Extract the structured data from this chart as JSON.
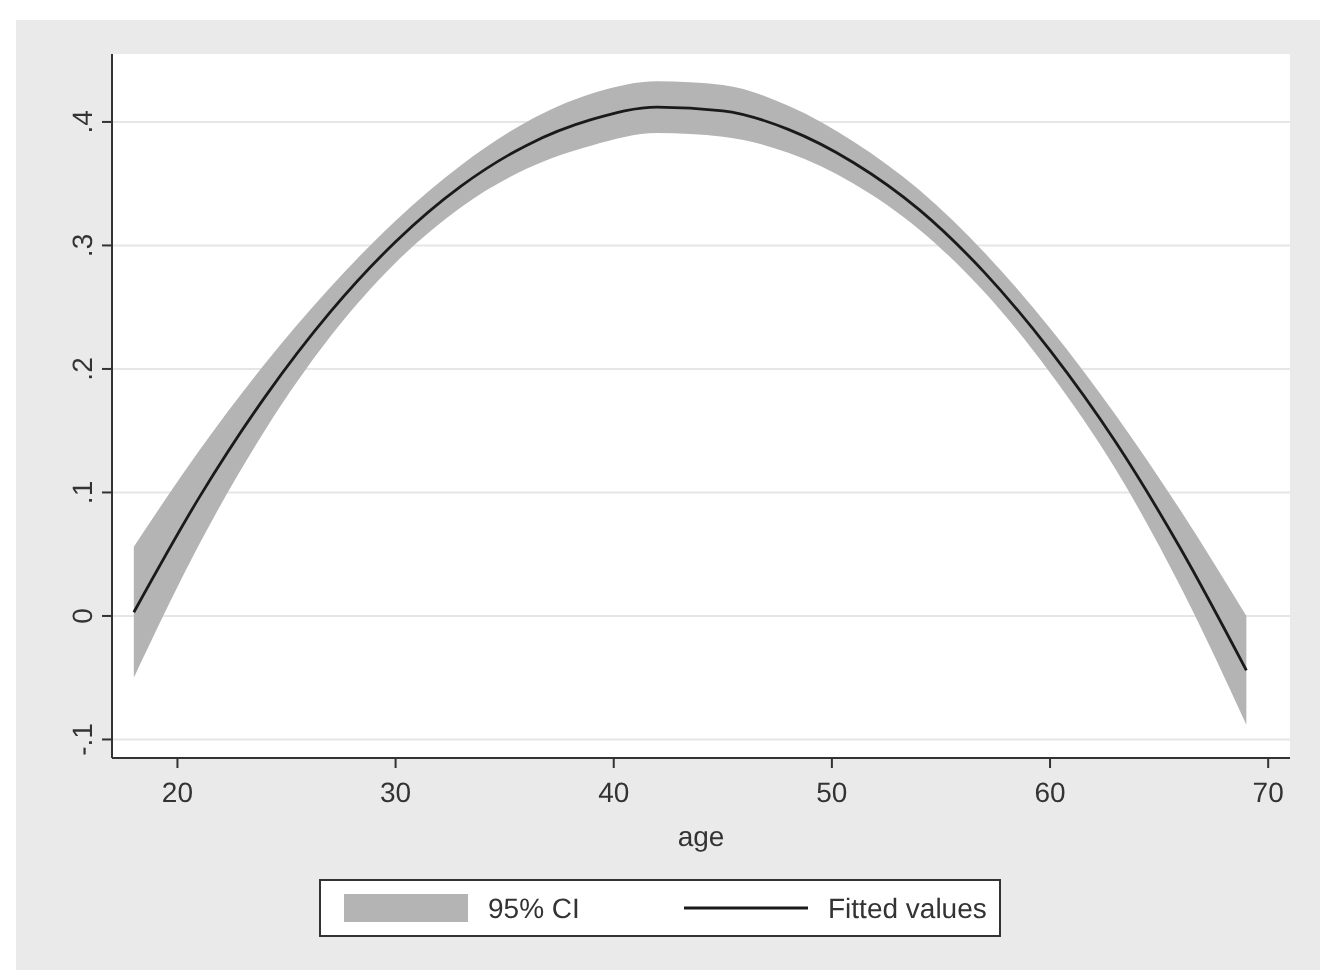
{
  "chart_data": {
    "type": "line",
    "xlabel": "age",
    "xlim": [
      17,
      71
    ],
    "ylim": [
      -0.115,
      0.455
    ],
    "xticks": [
      20,
      30,
      40,
      50,
      60,
      70
    ],
    "yticks": [
      {
        "value": -0.1,
        "label": "-.1"
      },
      0,
      {
        "value": 0.1,
        "label": ".1"
      },
      {
        "value": 0.2,
        "label": ".2"
      },
      {
        "value": 0.3,
        "label": ".3"
      },
      {
        "value": 0.4,
        "label": ".4"
      }
    ],
    "grid": "y",
    "legend": "bottom",
    "marker": "none",
    "line_style": "solid",
    "series": [
      {
        "name": "95% CI",
        "type": "line",
        "color": "#b4b4b4",
        "x": [
          18,
          21,
          24,
          27,
          30,
          33,
          36,
          39,
          42,
          45,
          48,
          51,
          54,
          57,
          60,
          63,
          66,
          69
        ],
        "values": [
          null,
          null,
          null,
          null,
          null,
          null,
          null,
          null,
          null,
          null,
          null,
          null,
          null,
          null,
          null,
          null,
          null,
          null
        ],
        "lower": [
          -0.05,
          0.058,
          0.15,
          0.226,
          0.286,
          0.331,
          0.362,
          0.381,
          0.391,
          0.388,
          0.375,
          0.35,
          0.313,
          0.262,
          0.197,
          0.119,
          0.023,
          -0.088
        ],
        "upper": [
          0.056,
          0.134,
          0.204,
          0.266,
          0.32,
          0.365,
          0.4,
          0.423,
          0.433,
          0.43,
          0.413,
          0.384,
          0.345,
          0.294,
          0.233,
          0.163,
          0.085,
          0.0
        ]
      },
      {
        "name": "Fitted values",
        "type": "line",
        "color": "#1a1a1a",
        "x": [
          18,
          21,
          24,
          27,
          30,
          33,
          36,
          39,
          42,
          45,
          48,
          51,
          54,
          57,
          60,
          63,
          66,
          69
        ],
        "values": [
          0.003,
          0.096,
          0.177,
          0.246,
          0.303,
          0.348,
          0.381,
          0.402,
          0.412,
          0.409,
          0.394,
          0.367,
          0.329,
          0.278,
          0.215,
          0.141,
          0.054,
          -0.044
        ]
      }
    ]
  }
}
